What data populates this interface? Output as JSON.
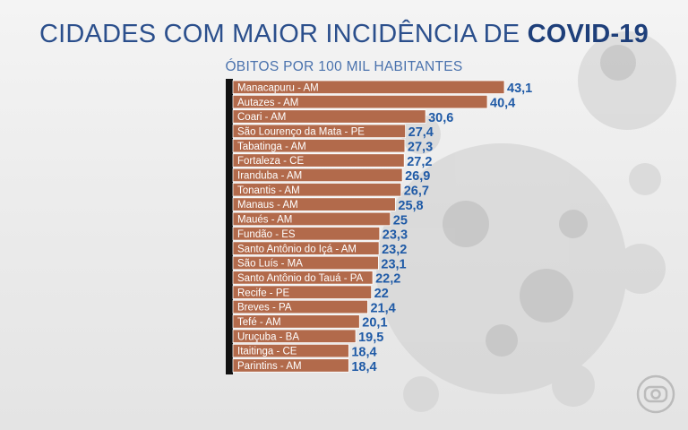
{
  "header": {
    "title_main": "CIDADES COM MAIOR INCIDÊNCIA DE",
    "title_emph": "COVID-19",
    "subtitle": "ÓBITOS POR 100 MIL HABITANTES"
  },
  "colors": {
    "bar": "#b26a4b",
    "bar_edge": "#ffffff",
    "axis": "#111111",
    "value_text": "#1f5aa6",
    "title": "#2b4f8c"
  },
  "chart_data": {
    "type": "bar",
    "orientation": "horizontal",
    "title": "CIDADES COM MAIOR INCIDÊNCIA DE COVID-19",
    "subtitle": "ÓBITOS POR 100 MIL HABITANTES",
    "xlim": [
      0,
      45
    ],
    "grid": false,
    "categories": [
      "Manacapuru - AM",
      "Autazes - AM",
      "Coari - AM",
      "São Lourenço da Mata - PE",
      "Tabatinga - AM",
      "Fortaleza - CE",
      "Iranduba - AM",
      "Tonantis - AM",
      "Manaus - AM",
      "Maués - AM",
      "Fundão - ES",
      "Santo Antônio do Içá - AM",
      "São Luís - MA",
      "Santo Antônio do Tauá - PA",
      "Recife - PE",
      "Breves - PA",
      "Tefé - AM",
      "Uruçuba - BA",
      "Itaitinga - CE",
      "Parintins - AM"
    ],
    "values": [
      43.1,
      40.4,
      30.6,
      27.4,
      27.3,
      27.2,
      26.9,
      26.7,
      25.8,
      25,
      23.3,
      23.2,
      23.1,
      22.2,
      22,
      21.4,
      20.1,
      19.5,
      18.4,
      18.4
    ],
    "value_labels": [
      "43,1",
      "40,4",
      "30,6",
      "27,4",
      "27,3",
      "27,2",
      "26,9",
      "26,7",
      "25,8",
      "25",
      "23,3",
      "23,2",
      "23,1",
      "22,2",
      "22",
      "21,4",
      "20,1",
      "19,5",
      "18,4",
      "18,4"
    ]
  }
}
